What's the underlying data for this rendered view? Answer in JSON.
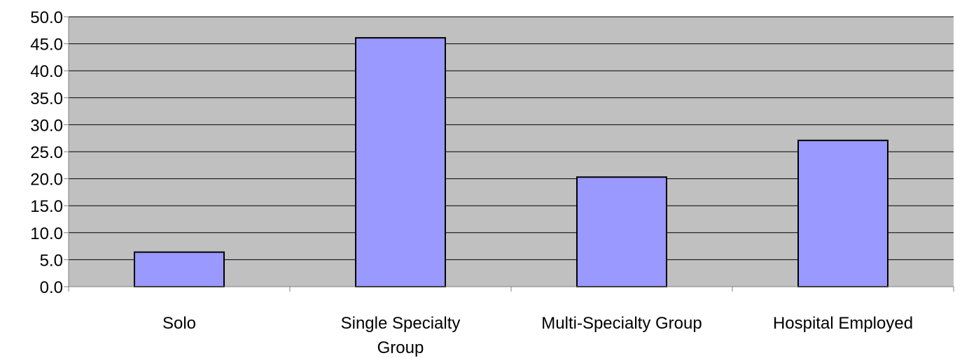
{
  "chart_data": {
    "type": "bar",
    "categories": [
      [
        "Solo"
      ],
      [
        "Single Specialty",
        "Group"
      ],
      [
        "Multi-Specialty Group"
      ],
      [
        "Hospital Employed"
      ]
    ],
    "values": [
      6.4,
      46.1,
      20.3,
      27.1
    ],
    "ylim": [
      0,
      50
    ],
    "yticks": [
      "0.0",
      "5.0",
      "10.0",
      "15.0",
      "20.0",
      "25.0",
      "30.0",
      "35.0",
      "40.0",
      "45.0",
      "50.0"
    ],
    "title": "",
    "xlabel": "",
    "ylabel": "",
    "grid": true,
    "legend": "none"
  },
  "colors": {
    "plot_background": "#c0c0c0",
    "bar_fill": "#9999ff",
    "bar_stroke": "#000000",
    "gridline": "#000000",
    "axis": "#808080"
  }
}
